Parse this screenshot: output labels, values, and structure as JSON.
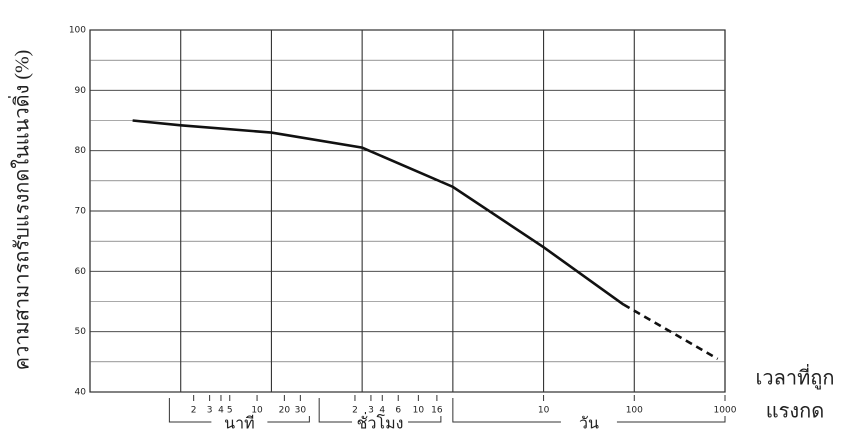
{
  "chart_data": {
    "type": "line",
    "y_label": "ความสามารถรับแรงกดในแนวดิ่ง (%)",
    "x_label": [
      "เวลาที่ถูก",
      "แรงกด"
    ],
    "log_x": true,
    "xlim": [
      0.0001,
      1000
    ],
    "ylim": [
      40,
      100
    ],
    "yticks": [
      40,
      50,
      60,
      70,
      80,
      90,
      100
    ],
    "minor_yticks": [
      45,
      55,
      65,
      75,
      85,
      95
    ],
    "xgrid": [
      0.001,
      0.01,
      0.1,
      1,
      10,
      100
    ],
    "xticks": [
      {
        "value": 0.001389,
        "label": "2"
      },
      {
        "value": 0.002083,
        "label": "3"
      },
      {
        "value": 0.002778,
        "label": "4"
      },
      {
        "value": 0.003472,
        "label": "5"
      },
      {
        "value": 0.006944,
        "label": "10"
      },
      {
        "value": 0.013889,
        "label": "20"
      },
      {
        "value": 0.020833,
        "label": "30"
      },
      {
        "value": 0.08333,
        "label": "2"
      },
      {
        "value": 0.125,
        "label": "3"
      },
      {
        "value": 0.16667,
        "label": "4"
      },
      {
        "value": 0.25,
        "label": "6"
      },
      {
        "value": 0.41667,
        "label": "10"
      },
      {
        "value": 0.66667,
        "label": "16"
      },
      10,
      100,
      1000
    ],
    "x_groups": [
      {
        "label": "นาที",
        "from": 0.00075,
        "to": 0.0262
      },
      {
        "label": "ชั่วโมง",
        "from": 0.0336,
        "to": 0.738
      },
      {
        "label": "วัน",
        "from": 1,
        "to": 1000
      }
    ],
    "series": [
      {
        "color": "#111111",
        "x": [
          0.000295,
          0.001,
          0.01,
          0.1,
          1,
          10,
          76
        ],
        "values": [
          85,
          84.2,
          83,
          80.5,
          74,
          64,
          54.5
        ]
      },
      {
        "color": "#111111",
        "dashed": true,
        "x": [
          76,
          830
        ],
        "values": [
          54.5,
          45.5
        ]
      }
    ]
  }
}
